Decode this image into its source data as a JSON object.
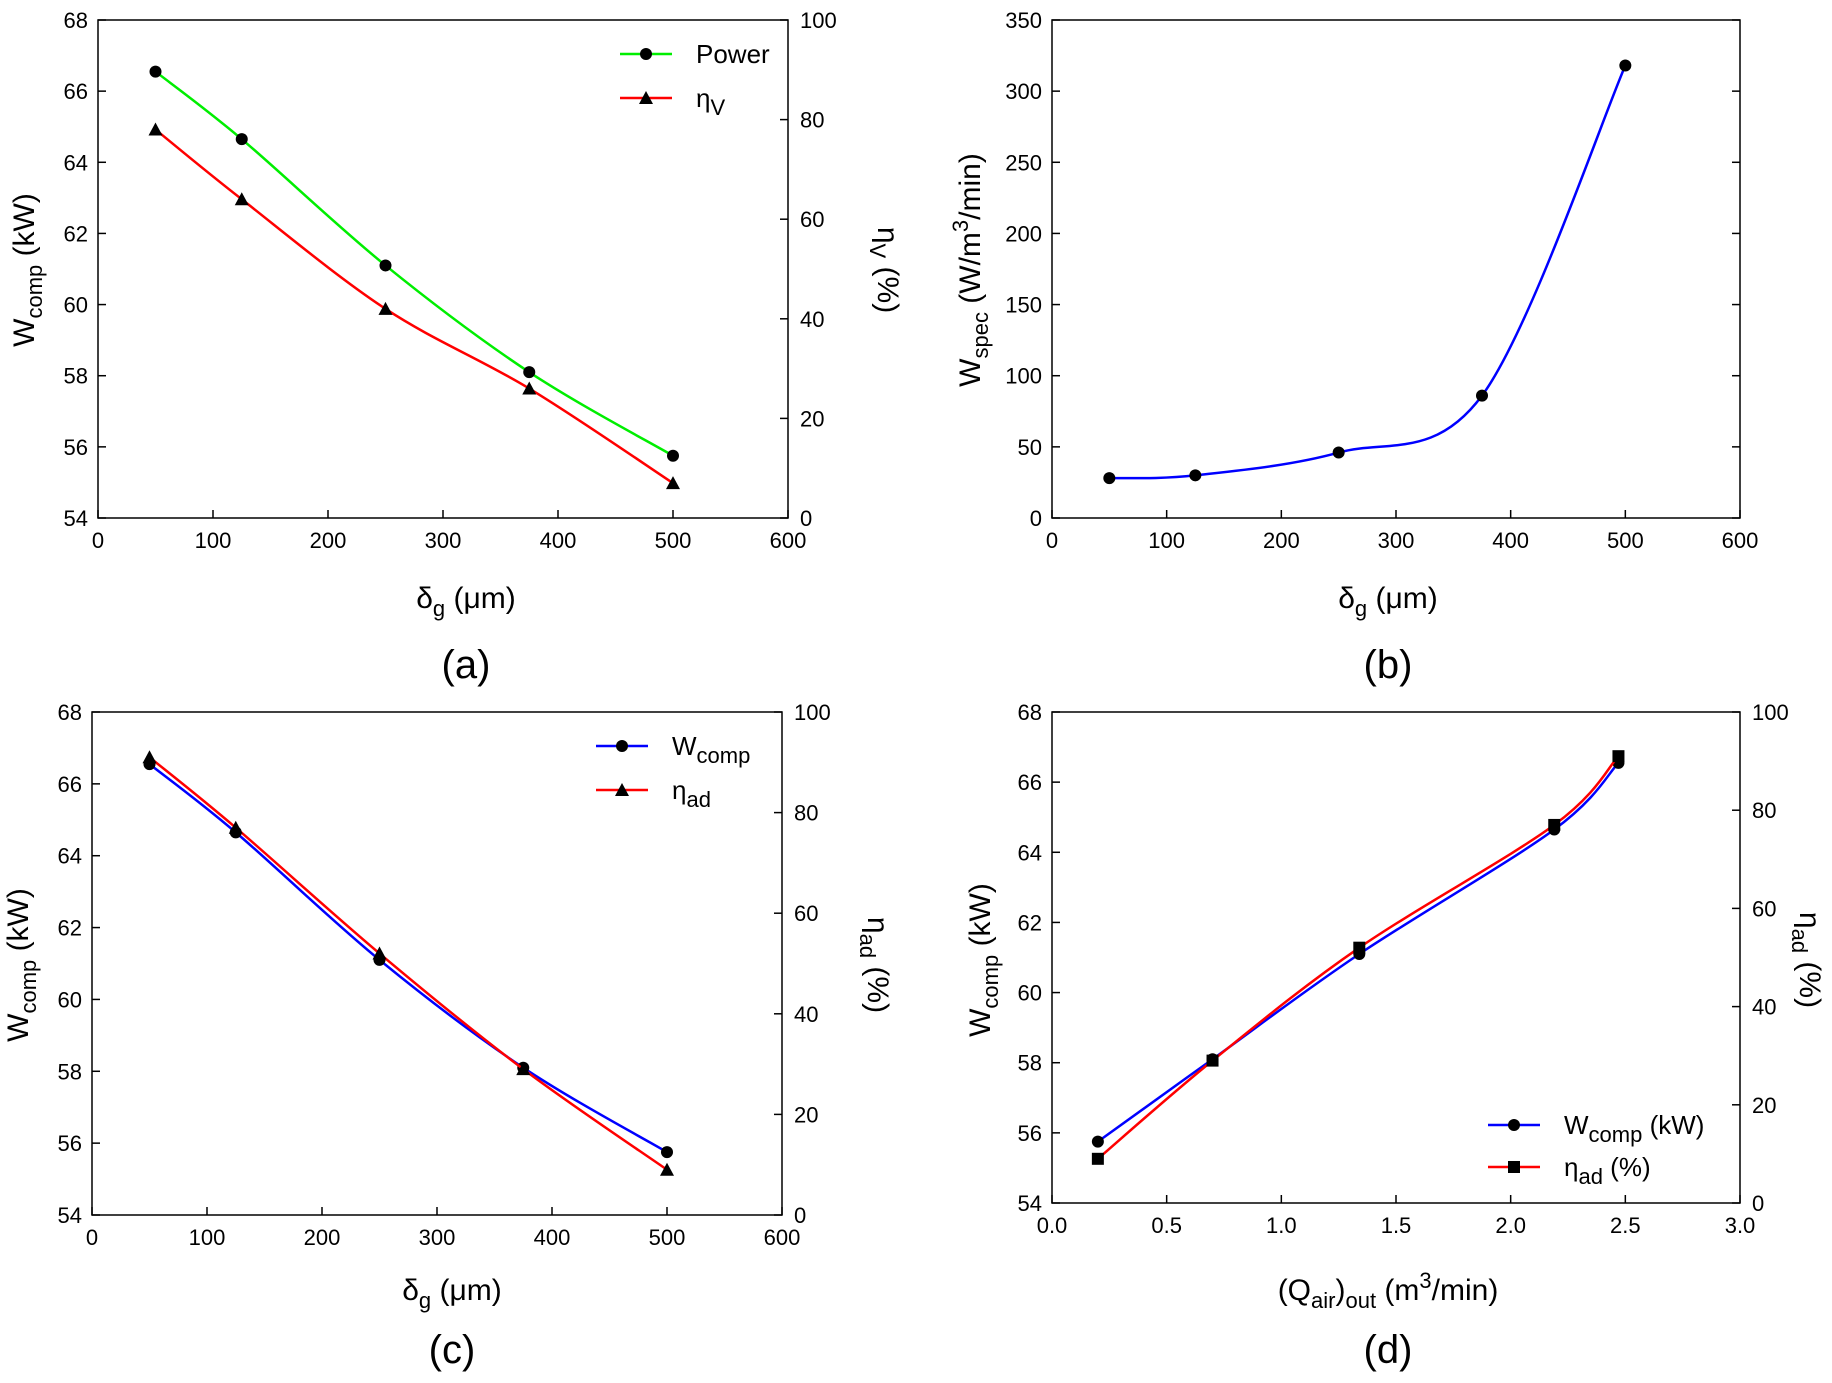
{
  "figure": {
    "panels": [
      {
        "id": "a",
        "caption": "(a)",
        "xlabel": {
          "main": "δ",
          "sub": "g",
          "rest": " (μm)"
        },
        "ylabel": {
          "main": "W",
          "sub": "comp",
          "rest": " (kW)"
        },
        "y2label": {
          "main": "η",
          "sub": "V",
          "rest": " (%)"
        },
        "xlim": [
          0,
          600
        ],
        "ylim": [
          54,
          68
        ],
        "y2lim": [
          0,
          100
        ],
        "xticks": [
          "0",
          "100",
          "200",
          "300",
          "400",
          "500",
          "600"
        ],
        "yticks": [
          "54",
          "56",
          "58",
          "60",
          "62",
          "64",
          "66",
          "68"
        ],
        "y2ticks": [
          "0",
          "20",
          "40",
          "60",
          "80",
          "100"
        ]
      },
      {
        "id": "b",
        "caption": "(b)",
        "xlabel": {
          "main": "δ",
          "sub": "g",
          "rest": " (μm)"
        },
        "ylabel": {
          "main": "W",
          "sub": "spec",
          "rest": " (W/m",
          "sup": "3",
          "rest2": "/min)"
        },
        "xlim": [
          0,
          600
        ],
        "ylim": [
          0,
          350
        ],
        "xticks": [
          "0",
          "100",
          "200",
          "300",
          "400",
          "500",
          "600"
        ],
        "yticks": [
          "0",
          "50",
          "100",
          "150",
          "200",
          "250",
          "300",
          "350"
        ]
      },
      {
        "id": "c",
        "caption": "(c)",
        "xlabel": {
          "main": "δ",
          "sub": "g",
          "rest": " (μm)"
        },
        "ylabel": {
          "main": "W",
          "sub": "comp",
          "rest": " (kW)"
        },
        "y2label": {
          "main": "η",
          "sub": "ad",
          "rest": " (%)"
        },
        "xlim": [
          0,
          600
        ],
        "ylim": [
          54,
          68
        ],
        "y2lim": [
          0,
          100
        ],
        "xticks": [
          "0",
          "100",
          "200",
          "300",
          "400",
          "500",
          "600"
        ],
        "yticks": [
          "54",
          "56",
          "58",
          "60",
          "62",
          "64",
          "66",
          "68"
        ],
        "y2ticks": [
          "0",
          "20",
          "40",
          "60",
          "80",
          "100"
        ]
      },
      {
        "id": "d",
        "caption": "(d)",
        "xlabel": {
          "main": "(Q",
          "sub": "air",
          "rest": ")",
          "sub2": "out",
          "rest2": " (m",
          "sup": "3",
          "rest3": "/min)"
        },
        "ylabel": {
          "main": "W",
          "sub": "comp",
          "rest": " (kW)"
        },
        "y2label": {
          "main": "η",
          "sub": "ad",
          "rest": " (%)"
        },
        "xlim": [
          0,
          3
        ],
        "ylim": [
          54,
          68
        ],
        "y2lim": [
          0,
          100
        ],
        "xticks": [
          "0.0",
          "0.5",
          "1.0",
          "1.5",
          "2.0",
          "2.5",
          "3.0"
        ],
        "yticks": [
          "54",
          "56",
          "58",
          "60",
          "62",
          "64",
          "66",
          "68"
        ],
        "y2ticks": [
          "0",
          "20",
          "40",
          "60",
          "80",
          "100"
        ]
      }
    ]
  },
  "chart_data": [
    {
      "type": "line",
      "panel": "a",
      "legend_position": "top-right",
      "series": [
        {
          "name": "Power",
          "legend": {
            "main": "Power"
          },
          "axis": "left",
          "color": "#00ee00",
          "marker": "circle",
          "x": [
            50,
            125,
            250,
            375,
            500
          ],
          "y": [
            66.55,
            64.65,
            61.1,
            58.1,
            55.75
          ]
        },
        {
          "name": "ηV",
          "legend": {
            "main": "η",
            "sub": "V"
          },
          "axis": "right",
          "color": "#ff0000",
          "marker": "triangle",
          "x": [
            50,
            125,
            250,
            375,
            500
          ],
          "y": [
            78,
            64,
            42,
            26,
            7
          ]
        }
      ]
    },
    {
      "type": "line",
      "panel": "b",
      "series": [
        {
          "axis": "left",
          "color": "#0000ff",
          "marker": "circle",
          "x": [
            50,
            125,
            250,
            375,
            500
          ],
          "y": [
            28,
            30,
            46,
            86,
            318
          ]
        }
      ]
    },
    {
      "type": "line",
      "panel": "c",
      "legend_position": "top-right",
      "series": [
        {
          "name": "Wcomp",
          "legend": {
            "main": "W",
            "sub": "comp"
          },
          "axis": "left",
          "color": "#0000ff",
          "marker": "circle",
          "x": [
            50,
            125,
            250,
            375,
            500
          ],
          "y": [
            66.55,
            64.65,
            61.1,
            58.1,
            55.75
          ]
        },
        {
          "name": "ηad",
          "legend": {
            "main": "η",
            "sub": "ad"
          },
          "axis": "right",
          "color": "#ff0000",
          "marker": "triangle",
          "x": [
            50,
            125,
            250,
            375,
            500
          ],
          "y": [
            91,
            77,
            52,
            29,
            9
          ]
        }
      ]
    },
    {
      "type": "line",
      "panel": "d",
      "legend_position": "bottom-right",
      "series": [
        {
          "name": "Wcomp (kW)",
          "legend": {
            "main": "W",
            "sub": "comp",
            "rest": " (kW)"
          },
          "axis": "left",
          "color": "#0000ff",
          "marker": "circle",
          "x": [
            0.2,
            0.7,
            1.34,
            2.19,
            2.47
          ],
          "y": [
            55.75,
            58.1,
            61.1,
            64.65,
            66.55
          ]
        },
        {
          "name": "ηad (%)",
          "legend": {
            "main": "η",
            "sub": "ad",
            "rest": " (%)"
          },
          "axis": "right",
          "color": "#ff0000",
          "marker": "square",
          "x": [
            0.2,
            0.7,
            1.34,
            2.19,
            2.47
          ],
          "y": [
            9,
            29,
            52,
            77,
            91
          ]
        }
      ]
    }
  ]
}
